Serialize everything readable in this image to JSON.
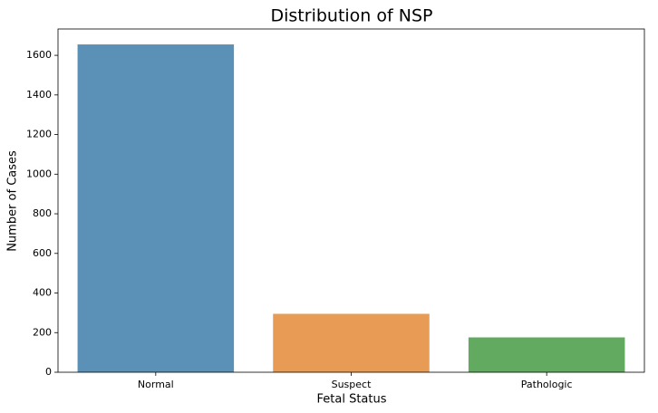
{
  "chart_data": {
    "type": "bar",
    "title": "Distribution of NSP",
    "x_label": "Fetal Status",
    "y_label": "Number of Cases",
    "categories": [
      "Normal",
      "Suspect",
      "Pathologic"
    ],
    "values": [
      1655,
      295,
      176
    ],
    "colors": [
      "#5b91b7",
      "#e89b55",
      "#61aa5f"
    ],
    "ylim": [
      0,
      1733
    ],
    "yticks": [
      0,
      200,
      400,
      600,
      800,
      1000,
      1200,
      1400,
      1600
    ],
    "grid": false
  }
}
